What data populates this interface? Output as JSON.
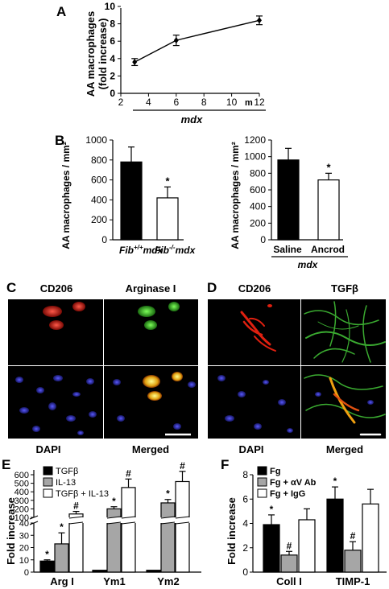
{
  "panels": {
    "A": "A",
    "B": "B",
    "C": "C",
    "D": "D",
    "E": "E",
    "F": "F"
  },
  "panelA": {
    "ylabel_line1": "AA macrophages",
    "ylabel_line2": "(fold increase)",
    "xunit": "m",
    "group_label": "mdx",
    "yticks": [
      "0",
      "2",
      "4",
      "6",
      "8",
      "10"
    ],
    "xticks": [
      "2",
      "4",
      "6",
      "8",
      "10",
      "12"
    ]
  },
  "panelB": {
    "ylabel": "AA macrophages / mm²",
    "yticks": [
      "0",
      "200",
      "400",
      "600",
      "800",
      "1000",
      "1200"
    ],
    "left_categories": [
      "Fib+/+mdx",
      "Fib-/-mdx"
    ],
    "right_categories": [
      "Saline",
      "Ancrod"
    ],
    "right_group_label": "mdx",
    "sig_left": "*",
    "sig_right": "*"
  },
  "panelC": {
    "labels": [
      "CD206",
      "Arginase I",
      "DAPI",
      "Merged"
    ]
  },
  "panelD": {
    "labels": [
      "CD206",
      "TGFβ",
      "DAPI",
      "Merged"
    ]
  },
  "panelE": {
    "ylabel": "Fold increase",
    "yticks_low": [
      "0",
      "10",
      "20",
      "30",
      "40"
    ],
    "yticks_high": [
      "100",
      "200",
      "300",
      "400",
      "500",
      "600"
    ],
    "legend": [
      "TGFβ",
      "IL-13",
      "TGFβ + IL-13"
    ],
    "categories": [
      "Arg I",
      "Ym1",
      "Ym2"
    ],
    "sig": [
      "*",
      "*",
      "#",
      "*",
      "#",
      "*",
      "#"
    ]
  },
  "panelF": {
    "ylabel": "Fold increase",
    "yticks": [
      "0",
      "2",
      "4",
      "6",
      "8"
    ],
    "legend": [
      "Fg",
      "Fg + αV Ab",
      "Fg + IgG"
    ],
    "categories": [
      "Coll I",
      "TIMP-1"
    ],
    "sig": [
      "*",
      "#",
      "*",
      "#"
    ]
  },
  "chart_data": [
    {
      "type": "line",
      "panel": "A",
      "x": [
        3,
        6,
        12
      ],
      "y": [
        3.6,
        6.1,
        8.4
      ],
      "error": [
        0.4,
        0.6,
        0.5
      ],
      "xlim": [
        2,
        12
      ],
      "ylim": [
        0,
        10
      ],
      "xlabel": "mdx",
      "ylabel": "AA macrophages (fold increase)"
    },
    {
      "type": "bar",
      "panel": "B-left",
      "categories": [
        "Fib+/+mdx",
        "Fib-/-mdx"
      ],
      "values": [
        780,
        420
      ],
      "error": [
        150,
        110
      ],
      "colors": [
        "#000000",
        "#ffffff"
      ],
      "ylim": [
        0,
        1000
      ],
      "ylabel": "AA macrophages / mm²"
    },
    {
      "type": "bar",
      "panel": "B-right",
      "categories": [
        "Saline",
        "Ancrod"
      ],
      "values": [
        960,
        720
      ],
      "error": [
        140,
        80
      ],
      "colors": [
        "#000000",
        "#ffffff"
      ],
      "ylim": [
        0,
        1200
      ],
      "xlabel": "mdx",
      "ylabel": "AA macrophages / mm²"
    },
    {
      "type": "bar",
      "panel": "E",
      "categories": [
        "Arg I",
        "Ym1",
        "Ym2"
      ],
      "series": [
        {
          "name": "TGFβ",
          "values": [
            9,
            1.5,
            1.5
          ],
          "error": [
            1,
            0.2,
            0.2
          ],
          "color": "#000000"
        },
        {
          "name": "IL-13",
          "values": [
            23,
            200,
            270
          ],
          "error": [
            9,
            25,
            40
          ],
          "color": "#a6a6a6"
        },
        {
          "name": "TGFβ + IL-13",
          "values": [
            140,
            450,
            520
          ],
          "error": [
            30,
            100,
            120
          ],
          "color": "#ffffff"
        }
      ],
      "ylabel": "Fold increase",
      "axis_break": [
        40,
        100
      ]
    },
    {
      "type": "bar",
      "panel": "F",
      "categories": [
        "Coll I",
        "TIMP-1"
      ],
      "series": [
        {
          "name": "Fg",
          "values": [
            3.9,
            6.0
          ],
          "error": [
            0.8,
            1.0
          ],
          "color": "#000000"
        },
        {
          "name": "Fg + αV Ab",
          "values": [
            1.4,
            1.8
          ],
          "error": [
            0.3,
            0.7
          ],
          "color": "#a6a6a6"
        },
        {
          "name": "Fg + IgG",
          "values": [
            4.3,
            5.6
          ],
          "error": [
            0.9,
            1.2
          ],
          "color": "#ffffff"
        }
      ],
      "ylim": [
        0,
        8
      ],
      "ylabel": "Fold increase"
    }
  ]
}
